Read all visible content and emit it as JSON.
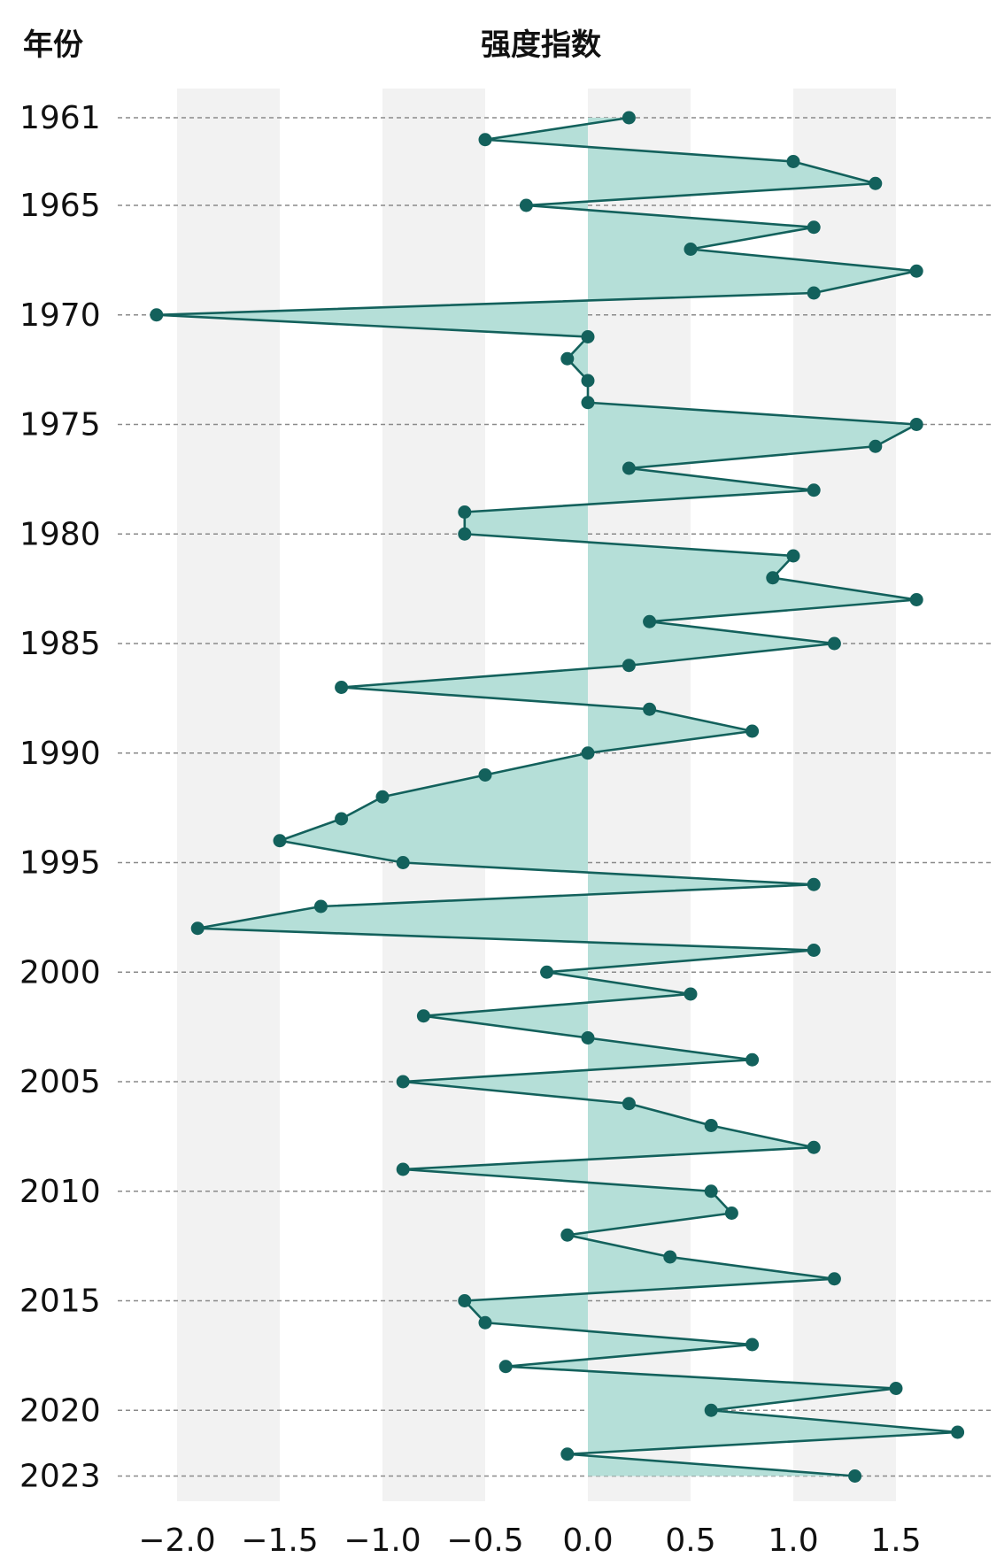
{
  "chart_data": {
    "type": "line",
    "orientation": "vertical",
    "xlabel": "强度指数",
    "ylabel": "年份",
    "xlim": [
      -2.1,
      1.85
    ],
    "ylim": [
      1961,
      2023
    ],
    "x_ticks": [
      -2.0,
      -1.5,
      -1.0,
      -0.5,
      0.0,
      0.5,
      1.0,
      1.5
    ],
    "x_tick_labels": [
      "−2.0",
      "−1.5",
      "−1.0",
      "−0.5",
      "0.0",
      "0.5",
      "1.0",
      "1.5"
    ],
    "y_ticks": [
      1961,
      1965,
      1970,
      1975,
      1980,
      1985,
      1990,
      1995,
      2000,
      2005,
      2010,
      2015,
      2020,
      2023
    ],
    "y_tick_labels": [
      "1961",
      "1965",
      "1970",
      "1975",
      "1980",
      "1985",
      "1990",
      "1995",
      "2000",
      "2005",
      "2010",
      "2015",
      "2020",
      "2023"
    ],
    "band_color": "#f2f2f2",
    "line_color": "#13615c",
    "fill_color": "#b5dfd8",
    "grid": "dashed horizontal at year ticks",
    "series": [
      {
        "points": [
          {
            "year": 1961,
            "value": 0.2
          },
          {
            "year": 1962,
            "value": -0.5
          },
          {
            "year": 1963,
            "value": 1.0
          },
          {
            "year": 1964,
            "value": 1.4
          },
          {
            "year": 1965,
            "value": -0.3
          },
          {
            "year": 1966,
            "value": 1.1
          },
          {
            "year": 1967,
            "value": 0.5
          },
          {
            "year": 1968,
            "value": 1.6
          },
          {
            "year": 1969,
            "value": 1.1
          },
          {
            "year": 1970,
            "value": -2.1
          },
          {
            "year": 1971,
            "value": 0.0
          },
          {
            "year": 1972,
            "value": -0.1
          },
          {
            "year": 1973,
            "value": 0.0
          },
          {
            "year": 1974,
            "value": 0.0
          },
          {
            "year": 1975,
            "value": 1.6
          },
          {
            "year": 1976,
            "value": 1.4
          },
          {
            "year": 1977,
            "value": 0.2
          },
          {
            "year": 1978,
            "value": 1.1
          },
          {
            "year": 1979,
            "value": -0.6
          },
          {
            "year": 1980,
            "value": -0.6
          },
          {
            "year": 1981,
            "value": 1.0
          },
          {
            "year": 1982,
            "value": 0.9
          },
          {
            "year": 1983,
            "value": 1.6
          },
          {
            "year": 1984,
            "value": 0.3
          },
          {
            "year": 1985,
            "value": 1.2
          },
          {
            "year": 1986,
            "value": 0.2
          },
          {
            "year": 1987,
            "value": -1.2
          },
          {
            "year": 1988,
            "value": 0.3
          },
          {
            "year": 1989,
            "value": 0.8
          },
          {
            "year": 1990,
            "value": 0.0
          },
          {
            "year": 1991,
            "value": -0.5
          },
          {
            "year": 1992,
            "value": -1.0
          },
          {
            "year": 1993,
            "value": -1.2
          },
          {
            "year": 1994,
            "value": -1.5
          },
          {
            "year": 1995,
            "value": -0.9
          },
          {
            "year": 1996,
            "value": 1.1
          },
          {
            "year": 1997,
            "value": -1.3
          },
          {
            "year": 1998,
            "value": -1.9
          },
          {
            "year": 1999,
            "value": 1.1
          },
          {
            "year": 2000,
            "value": -0.2
          },
          {
            "year": 2001,
            "value": 0.5
          },
          {
            "year": 2002,
            "value": -0.8
          },
          {
            "year": 2003,
            "value": 0.0
          },
          {
            "year": 2004,
            "value": 0.8
          },
          {
            "year": 2005,
            "value": -0.9
          },
          {
            "year": 2006,
            "value": 0.2
          },
          {
            "year": 2007,
            "value": 0.6
          },
          {
            "year": 2008,
            "value": 1.1
          },
          {
            "year": 2009,
            "value": -0.9
          },
          {
            "year": 2010,
            "value": 0.6
          },
          {
            "year": 2011,
            "value": 0.7
          },
          {
            "year": 2012,
            "value": -0.1
          },
          {
            "year": 2013,
            "value": 0.4
          },
          {
            "year": 2014,
            "value": 1.2
          },
          {
            "year": 2015,
            "value": -0.6
          },
          {
            "year": 2016,
            "value": -0.5
          },
          {
            "year": 2017,
            "value": 0.8
          },
          {
            "year": 2018,
            "value": -0.4
          },
          {
            "year": 2019,
            "value": 1.5
          },
          {
            "year": 2020,
            "value": 0.6
          },
          {
            "year": 2021,
            "value": 1.8
          },
          {
            "year": 2022,
            "value": -0.1
          },
          {
            "year": 2023,
            "value": 1.3
          }
        ]
      }
    ]
  }
}
